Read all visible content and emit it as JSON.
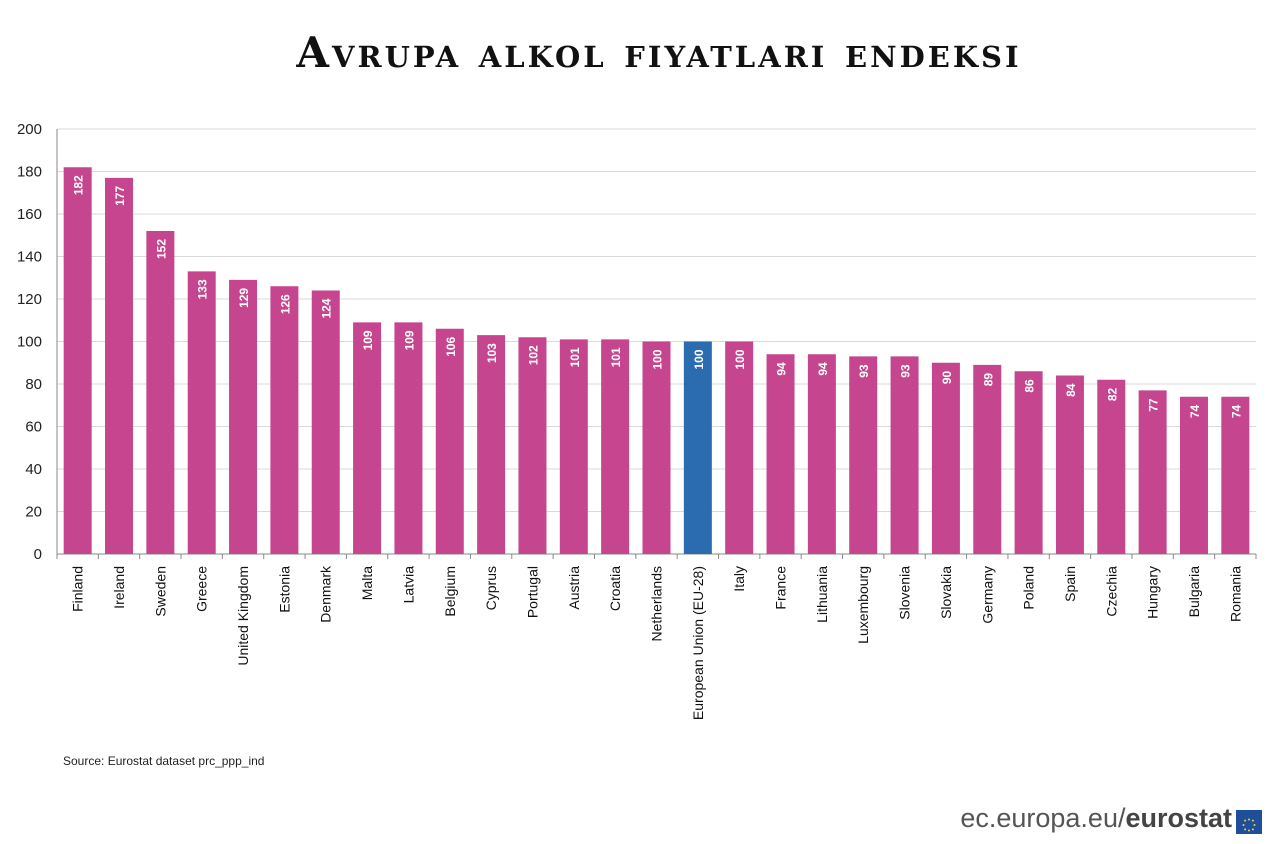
{
  "title": "Avrupa alkol fiyatları endeksi",
  "source": "Source:  Eurostat dataset prc_ppp_ind",
  "brand": {
    "url_prefix": "ec.europa.eu/",
    "name": "eurostat",
    "flag_icon": "eu-flag-icon"
  },
  "colors": {
    "bar": "#c5468f",
    "highlight": "#2b6cb0",
    "grid": "#d9d9d9",
    "axis": "#888888"
  },
  "chart_data": {
    "type": "bar",
    "categories": [
      "Finland",
      "Ireland",
      "Sweden",
      "Greece",
      "United Kingdom",
      "Estonia",
      "Denmark",
      "Malta",
      "Latvia",
      "Belgium",
      "Cyprus",
      "Portugal",
      "Austria",
      "Croatia",
      "Netherlands",
      "European Union (EU-28)",
      "Italy",
      "France",
      "Lithuania",
      "Luxembourg",
      "Slovenia",
      "Slovakia",
      "Germany",
      "Poland",
      "Spain",
      "Czechia",
      "Hungary",
      "Bulgaria",
      "Romania"
    ],
    "values": [
      182,
      177,
      152,
      133,
      129,
      126,
      124,
      109,
      109,
      106,
      103,
      102,
      101,
      101,
      100,
      100,
      100,
      94,
      94,
      93,
      93,
      90,
      89,
      86,
      84,
      82,
      77,
      74,
      74
    ],
    "highlight_category": "European Union (EU-28)",
    "ylim": [
      0,
      200
    ],
    "yticks": [
      0,
      20,
      40,
      60,
      80,
      100,
      120,
      140,
      160,
      180,
      200
    ],
    "grid": true,
    "data_labels": true
  }
}
